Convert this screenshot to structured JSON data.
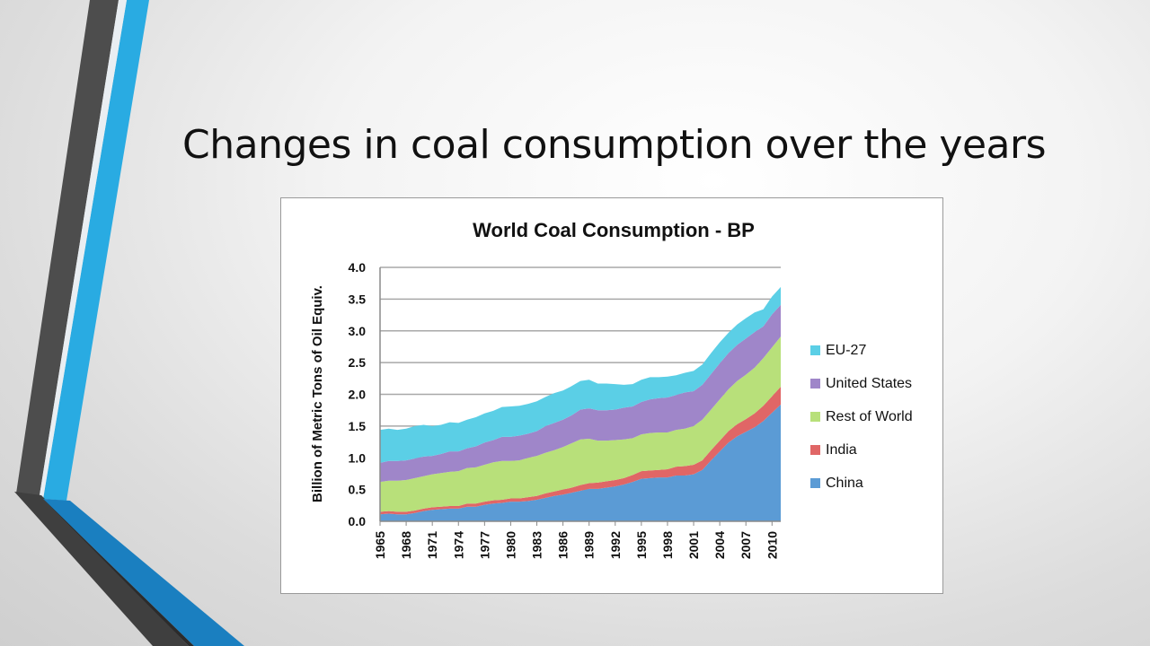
{
  "slide": {
    "title": "Changes in coal consumption over the years"
  },
  "colors": {
    "decor_dark": "#4d4d4d",
    "decor_blue": "#29abe2",
    "decor_blue_dark": "#1a7fc0"
  },
  "chart_data": {
    "type": "area",
    "stacked": true,
    "title": "World Coal Consumption - BP",
    "ylabel": "Billion of Metric Tons of Oil Equiv.",
    "xlabel": "",
    "ylim": [
      0,
      4
    ],
    "yticks": [
      "0.0",
      "0.5",
      "1.0",
      "1.5",
      "2.0",
      "2.5",
      "3.0",
      "3.5",
      "4.0"
    ],
    "xticks": [
      "1965",
      "1968",
      "1971",
      "1974",
      "1977",
      "1980",
      "1983",
      "1986",
      "1989",
      "1992",
      "1995",
      "1998",
      "2001",
      "2004",
      "2007",
      "2010"
    ],
    "grid": true,
    "legend_position": "right",
    "x": [
      1965,
      1966,
      1967,
      1968,
      1969,
      1970,
      1971,
      1972,
      1973,
      1974,
      1975,
      1976,
      1977,
      1978,
      1979,
      1980,
      1981,
      1982,
      1983,
      1984,
      1985,
      1986,
      1987,
      1988,
      1989,
      1990,
      1991,
      1992,
      1993,
      1994,
      1995,
      1996,
      1997,
      1998,
      1999,
      2000,
      2001,
      2002,
      2003,
      2004,
      2005,
      2006,
      2007,
      2008,
      2009,
      2010,
      2011
    ],
    "series": [
      {
        "name": "China",
        "color": "#5b9bd5",
        "values": [
          0.11,
          0.12,
          0.11,
          0.11,
          0.13,
          0.16,
          0.18,
          0.19,
          0.2,
          0.2,
          0.23,
          0.23,
          0.26,
          0.28,
          0.29,
          0.31,
          0.31,
          0.32,
          0.34,
          0.37,
          0.4,
          0.42,
          0.45,
          0.48,
          0.51,
          0.51,
          0.53,
          0.55,
          0.58,
          0.62,
          0.67,
          0.68,
          0.69,
          0.69,
          0.72,
          0.72,
          0.74,
          0.81,
          0.96,
          1.1,
          1.24,
          1.34,
          1.41,
          1.48,
          1.58,
          1.71,
          1.84
        ]
      },
      {
        "name": "India",
        "color": "#e06666",
        "values": [
          0.04,
          0.04,
          0.04,
          0.04,
          0.04,
          0.04,
          0.04,
          0.04,
          0.04,
          0.04,
          0.05,
          0.05,
          0.05,
          0.05,
          0.05,
          0.05,
          0.05,
          0.06,
          0.06,
          0.07,
          0.07,
          0.08,
          0.08,
          0.09,
          0.09,
          0.1,
          0.1,
          0.1,
          0.1,
          0.11,
          0.12,
          0.12,
          0.12,
          0.13,
          0.14,
          0.15,
          0.15,
          0.15,
          0.16,
          0.17,
          0.18,
          0.19,
          0.2,
          0.22,
          0.24,
          0.26,
          0.28
        ]
      },
      {
        "name": "Rest of World",
        "color": "#b8e07a",
        "values": [
          0.47,
          0.48,
          0.49,
          0.5,
          0.51,
          0.51,
          0.52,
          0.53,
          0.54,
          0.55,
          0.56,
          0.57,
          0.58,
          0.6,
          0.61,
          0.59,
          0.6,
          0.62,
          0.63,
          0.64,
          0.65,
          0.67,
          0.7,
          0.72,
          0.7,
          0.66,
          0.64,
          0.63,
          0.61,
          0.58,
          0.58,
          0.59,
          0.59,
          0.58,
          0.58,
          0.59,
          0.61,
          0.64,
          0.64,
          0.65,
          0.66,
          0.68,
          0.7,
          0.72,
          0.75,
          0.77,
          0.79
        ]
      },
      {
        "name": "United States",
        "color": "#9f86c9",
        "values": [
          0.3,
          0.31,
          0.31,
          0.31,
          0.31,
          0.31,
          0.29,
          0.3,
          0.32,
          0.31,
          0.31,
          0.33,
          0.35,
          0.35,
          0.38,
          0.38,
          0.39,
          0.38,
          0.39,
          0.42,
          0.43,
          0.43,
          0.44,
          0.47,
          0.48,
          0.48,
          0.48,
          0.48,
          0.5,
          0.5,
          0.51,
          0.53,
          0.54,
          0.55,
          0.55,
          0.57,
          0.55,
          0.55,
          0.56,
          0.57,
          0.57,
          0.57,
          0.57,
          0.56,
          0.5,
          0.52,
          0.5
        ]
      },
      {
        "name": "EU-27",
        "color": "#5bcfe6",
        "values": [
          0.52,
          0.51,
          0.49,
          0.5,
          0.51,
          0.5,
          0.47,
          0.46,
          0.46,
          0.45,
          0.45,
          0.46,
          0.46,
          0.46,
          0.47,
          0.48,
          0.47,
          0.47,
          0.47,
          0.46,
          0.47,
          0.46,
          0.46,
          0.45,
          0.45,
          0.42,
          0.42,
          0.4,
          0.36,
          0.35,
          0.35,
          0.35,
          0.33,
          0.33,
          0.31,
          0.31,
          0.32,
          0.32,
          0.33,
          0.33,
          0.32,
          0.32,
          0.32,
          0.31,
          0.27,
          0.28,
          0.28
        ]
      }
    ]
  }
}
